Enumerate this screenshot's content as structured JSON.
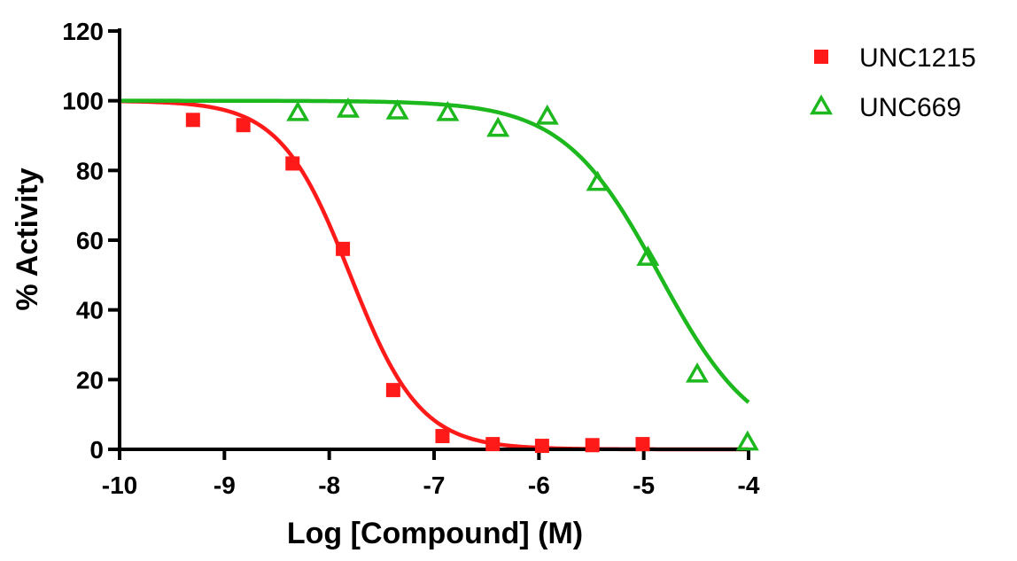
{
  "chart_data": {
    "type": "scatter",
    "title": "",
    "xlabel": "Log [Compound] (M)",
    "ylabel": "% Activity",
    "xlim": [
      -10,
      -4
    ],
    "ylim": [
      0,
      120
    ],
    "xticks": [
      "-10",
      "-9",
      "-8",
      "-7",
      "-6",
      "-5",
      "-4"
    ],
    "yticks": [
      "0",
      "20",
      "40",
      "60",
      "80",
      "100",
      "120"
    ],
    "grid": false,
    "legend_position": "right",
    "series": [
      {
        "name": "UNC1215",
        "marker": "square",
        "color": "#ff1a1a",
        "x": [
          -9.3,
          -8.82,
          -8.35,
          -7.87,
          -7.39,
          -6.92,
          -6.44,
          -5.97,
          -5.49,
          -5.01
        ],
        "y": [
          94.5,
          93,
          82,
          57.5,
          17,
          3.8,
          1.5,
          1,
          1.2,
          1.5
        ],
        "fit": {
          "bottom": 0,
          "top": 100,
          "logIC50": -7.8,
          "hill": 1.3
        }
      },
      {
        "name": "UNC669",
        "marker": "triangle",
        "color": "#1db81d",
        "x": [
          -8.3,
          -7.82,
          -7.35,
          -6.87,
          -6.39,
          -5.92,
          -5.44,
          -4.96,
          -4.49,
          -4.01
        ],
        "y": [
          96.5,
          97.5,
          97,
          96.5,
          92,
          95.5,
          76.5,
          55,
          21.5,
          2
        ],
        "fit": {
          "bottom": 0,
          "top": 100,
          "logIC50": -4.85,
          "hill": 0.95
        }
      }
    ]
  }
}
